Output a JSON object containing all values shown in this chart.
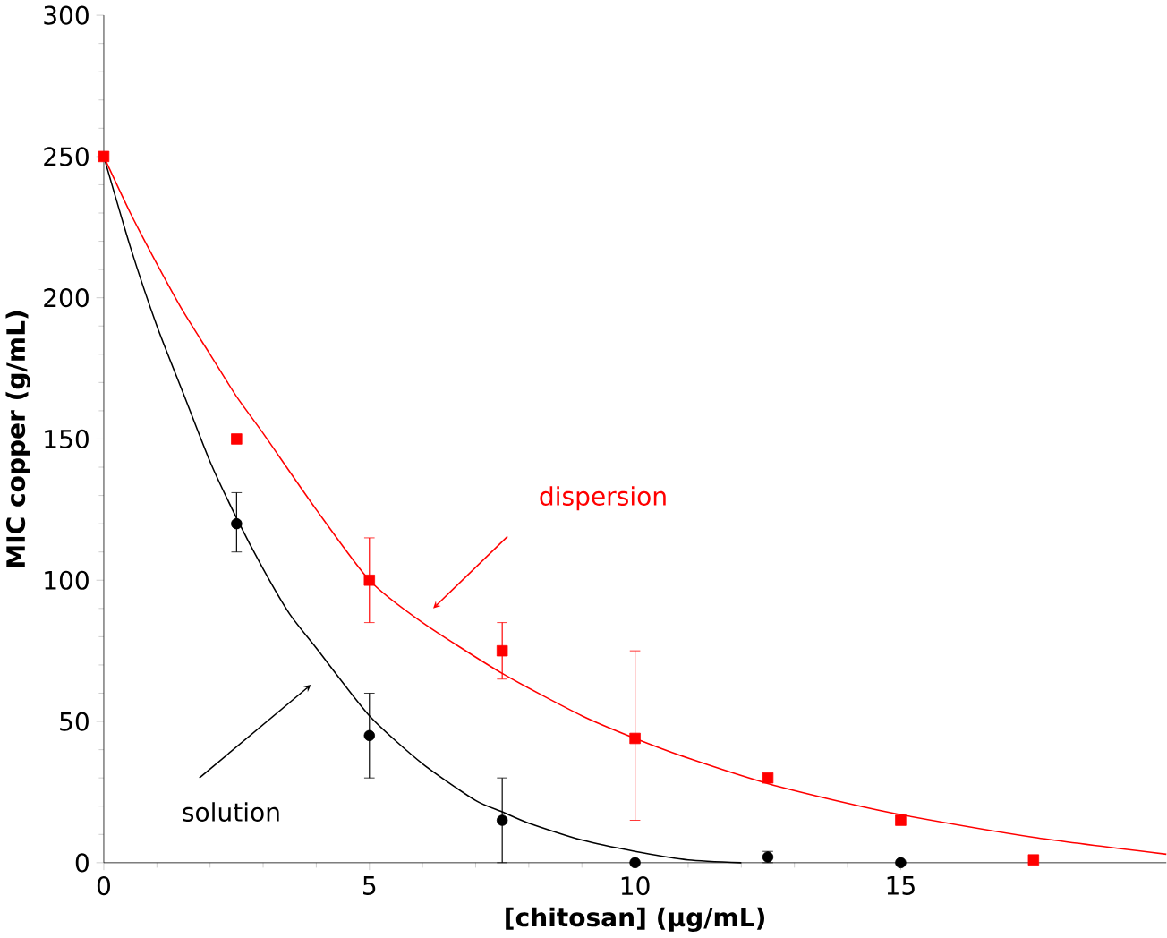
{
  "chart_data": {
    "type": "scatter",
    "xlabel": "[chitosan] (µg/mL)",
    "ylabel": "MIC copper (g/mL)",
    "xlim": [
      0,
      20
    ],
    "xticks": [
      0,
      5,
      10,
      15
    ],
    "ylim": [
      0,
      300
    ],
    "yticks": [
      0,
      50,
      100,
      150,
      200,
      250,
      300
    ],
    "grid": false,
    "series": [
      {
        "type": "line",
        "color": "#ff0000",
        "x": [
          0,
          0.5,
          1,
          1.5,
          2,
          2.5,
          3,
          4,
          5,
          6,
          7.5,
          9,
          10,
          11,
          12.5,
          14,
          15,
          17.5,
          20
        ],
        "values": [
          250,
          230,
          212,
          195,
          180,
          165,
          152,
          125,
          100,
          85,
          67,
          52,
          44,
          37,
          28,
          21,
          17,
          9,
          3
        ]
      },
      {
        "type": "line",
        "color": "#000000",
        "x": [
          0,
          0.5,
          1,
          1.5,
          2,
          2.5,
          3,
          3.5,
          4,
          5,
          6,
          7,
          7.5,
          8,
          9,
          10,
          11,
          12
        ],
        "values": [
          250,
          218,
          190,
          166,
          142,
          122,
          104,
          88,
          76,
          52,
          35,
          22,
          18,
          14,
          8,
          4,
          1,
          0
        ]
      },
      {
        "marker": "square",
        "color": "#ff0000",
        "x": [
          0,
          2.5,
          5,
          7.5,
          10,
          12.5,
          15,
          17.5
        ],
        "values": [
          250,
          150,
          100,
          75,
          44,
          30,
          15,
          1
        ],
        "errors": [
          null,
          null,
          [
            85,
            115
          ],
          [
            65,
            85
          ],
          [
            15,
            75
          ],
          null,
          null,
          null
        ]
      },
      {
        "marker": "circle",
        "color": "#000000",
        "x": [
          2.5,
          5,
          7.5,
          10,
          12.5,
          15
        ],
        "values": [
          120,
          45,
          15,
          0,
          2,
          0
        ],
        "errors": [
          [
            110,
            131
          ],
          [
            30,
            60
          ],
          [
            0,
            30
          ],
          null,
          2,
          null
        ]
      }
    ],
    "annotations": [
      "dispersion",
      "solution"
    ]
  }
}
